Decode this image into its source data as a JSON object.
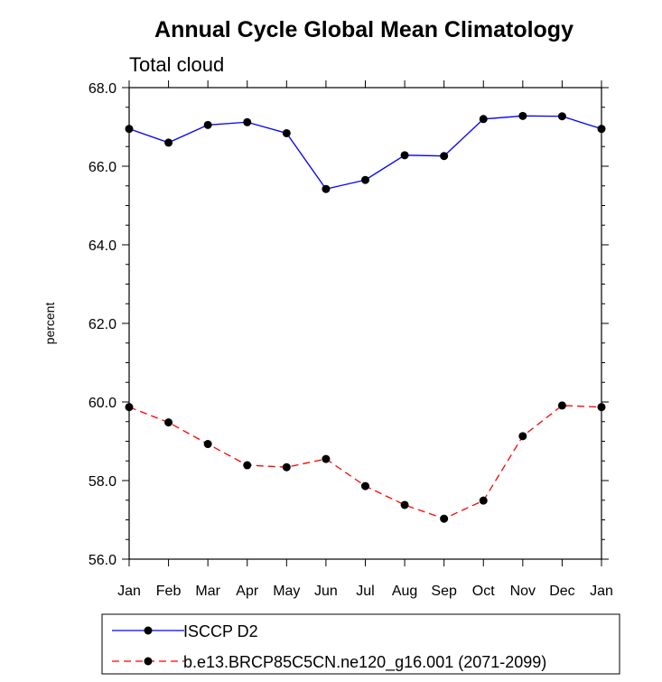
{
  "chart_data": {
    "type": "line",
    "title": "Annual Cycle Global Mean Climatology",
    "subtitle": "Total cloud",
    "xlabel": "",
    "ylabel": "percent",
    "categories": [
      "Jan",
      "Feb",
      "Mar",
      "Apr",
      "May",
      "Jun",
      "Jul",
      "Aug",
      "Sep",
      "Oct",
      "Nov",
      "Dec",
      "Jan"
    ],
    "ylim": [
      56.0,
      68.0
    ],
    "yticks": [
      "56.0",
      "58.0",
      "60.0",
      "62.0",
      "64.0",
      "66.0",
      "68.0"
    ],
    "grid": false,
    "legend_position": "bottom",
    "series": [
      {
        "name": "ISCCP D2",
        "color": "#0000ff",
        "line_style": "solid",
        "marker": "filled-circle",
        "values": [
          66.95,
          66.6,
          67.05,
          67.12,
          66.84,
          65.42,
          65.65,
          66.28,
          66.26,
          67.2,
          67.28,
          67.27,
          66.95
        ]
      },
      {
        "name": "b.e13.BRCP85C5CN.ne120_g16.001 (2071-2099)",
        "color": "#ff0000",
        "line_style": "dashed",
        "marker": "filled-circle",
        "values": [
          59.87,
          59.48,
          58.93,
          58.39,
          58.34,
          58.55,
          57.86,
          57.38,
          57.03,
          57.49,
          59.13,
          59.91,
          59.87
        ]
      }
    ]
  }
}
